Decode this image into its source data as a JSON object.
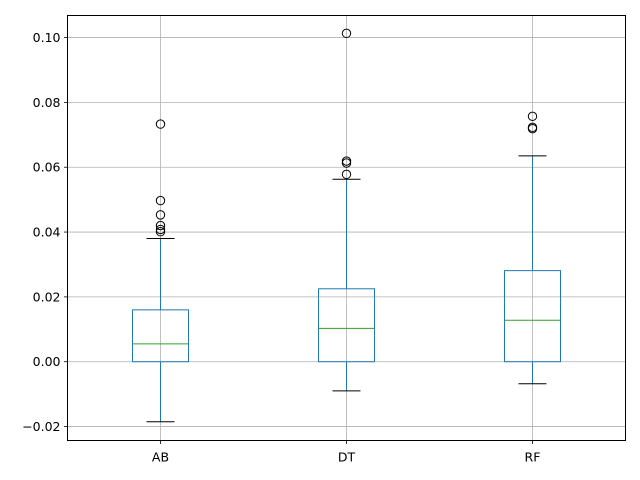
{
  "chart_data": {
    "type": "box",
    "title": "",
    "xlabel": "",
    "ylabel": "",
    "categories": [
      "AB",
      "DT",
      "RF"
    ],
    "ylim": [
      -0.0243,
      0.1068
    ],
    "yticks": [
      -0.02,
      0.0,
      0.02,
      0.04,
      0.06,
      0.08,
      0.1
    ],
    "ytick_labels": [
      "−0.02",
      "0.00",
      "0.02",
      "0.04",
      "0.06",
      "0.08",
      "0.10"
    ],
    "grid": true,
    "boxes": [
      {
        "name": "AB",
        "whisker_low": -0.0185,
        "q1": 0.0,
        "median": 0.0055,
        "q3": 0.016,
        "whisker_high": 0.038,
        "outliers": [
          0.0401,
          0.0408,
          0.042,
          0.0453,
          0.0497,
          0.0733
        ]
      },
      {
        "name": "DT",
        "whisker_low": -0.009,
        "q1": 0.0,
        "median": 0.0103,
        "q3": 0.0225,
        "whisker_high": 0.0563,
        "outliers": [
          0.0578,
          0.0613,
          0.0619,
          0.1013
        ]
      },
      {
        "name": "RF",
        "whisker_low": -0.0068,
        "q1": 0.0,
        "median": 0.0128,
        "q3": 0.0281,
        "whisker_high": 0.0635,
        "outliers": [
          0.0719,
          0.0723,
          0.0757
        ]
      }
    ],
    "colors": {
      "box": "#1f77b4",
      "median": "#2ca02c",
      "cap": "#000000",
      "flier": "#000000",
      "grid": "#b0b0b0",
      "axes": "#000000"
    }
  }
}
